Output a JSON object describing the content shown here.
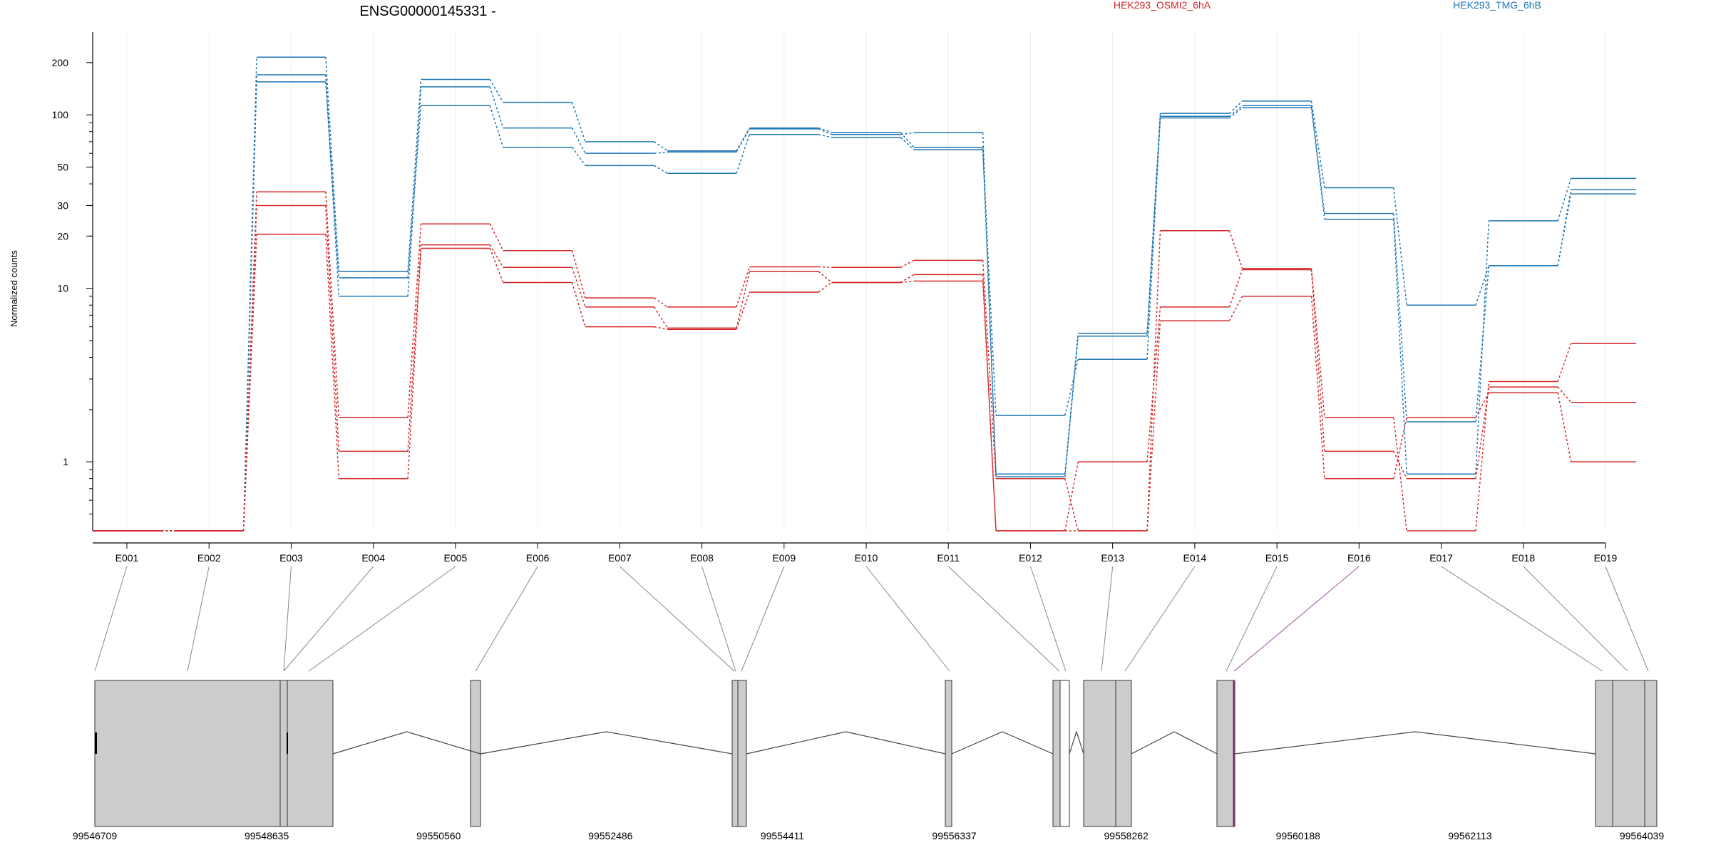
{
  "chart_data": {
    "type": "line",
    "title": "ENSG00000145331 -",
    "ylabel": "Normalized counts",
    "yscale": "log",
    "ylim": [
      0.4,
      300
    ],
    "ytick_labels": [
      "200",
      "100",
      "50",
      "30",
      "20",
      "10",
      "1"
    ],
    "ytick_values": [
      200,
      100,
      50,
      30,
      20,
      10,
      1
    ],
    "grid": true,
    "legend": [
      {
        "name": "HEK293_OSMI2_6hA",
        "color": "#d62728"
      },
      {
        "name": "HEK293_TMG_6hB",
        "color": "#1f77b4"
      }
    ],
    "categories": [
      "E001",
      "E002",
      "E003",
      "E004",
      "E005",
      "E006",
      "E007",
      "E008",
      "E009",
      "E010",
      "E011",
      "E012",
      "E013",
      "E014",
      "E015",
      "E016",
      "E017",
      "E018",
      "E019"
    ],
    "series": [
      {
        "group": "HEK293_TMG_6hB",
        "color": "#1f77b4",
        "values": [
          0.4,
          0.4,
          215,
          12.5,
          160,
          118,
          70,
          62,
          84,
          79,
          65,
          0.85,
          5.5,
          102,
          120,
          38,
          8,
          13.5,
          37
        ]
      },
      {
        "group": "HEK293_TMG_6hB",
        "color": "#1f77b4",
        "values": [
          0.4,
          0.4,
          170,
          9,
          145,
          84,
          60,
          61,
          83,
          77,
          79,
          0.82,
          5.3,
          98,
          113,
          27,
          1.7,
          13.5,
          35
        ]
      },
      {
        "group": "HEK293_TMG_6hB",
        "color": "#1f77b4",
        "values": [
          0.4,
          0.4,
          155,
          11.5,
          113,
          65,
          51,
          46,
          77,
          74,
          63,
          1.85,
          3.9,
          96,
          110,
          25,
          0.85,
          24.5,
          43
        ]
      },
      {
        "group": "HEK293_OSMI2_6hA",
        "color": "#d62728",
        "values": [
          0.4,
          0.4,
          36,
          1.8,
          23.5,
          16.5,
          8.8,
          7.8,
          13.3,
          13.2,
          14.5,
          0.8,
          0.4,
          21.5,
          13,
          1.8,
          0.4,
          2.9,
          4.8
        ]
      },
      {
        "group": "HEK293_OSMI2_6hA",
        "color": "#d62728",
        "values": [
          0.4,
          0.4,
          30,
          1.15,
          17.8,
          13.2,
          7.8,
          5.9,
          12.5,
          10.8,
          12,
          0.4,
          1.0,
          7.8,
          12.8,
          1.15,
          0.8,
          2.7,
          2.2
        ]
      },
      {
        "group": "HEK293_OSMI2_6hA",
        "color": "#d62728",
        "values": [
          0.4,
          0.4,
          20.5,
          0.8,
          17,
          10.8,
          6,
          5.8,
          9.5,
          10.8,
          11,
          0.4,
          0.4,
          6.5,
          9,
          0.8,
          1.8,
          2.5,
          1
        ]
      }
    ],
    "gene_model": {
      "coord_labels": [
        "99546709",
        "99548635",
        "99550560",
        "99552486",
        "99554411",
        "99556337",
        "99558262",
        "99560188",
        "99562113",
        "99564039"
      ]
    }
  }
}
